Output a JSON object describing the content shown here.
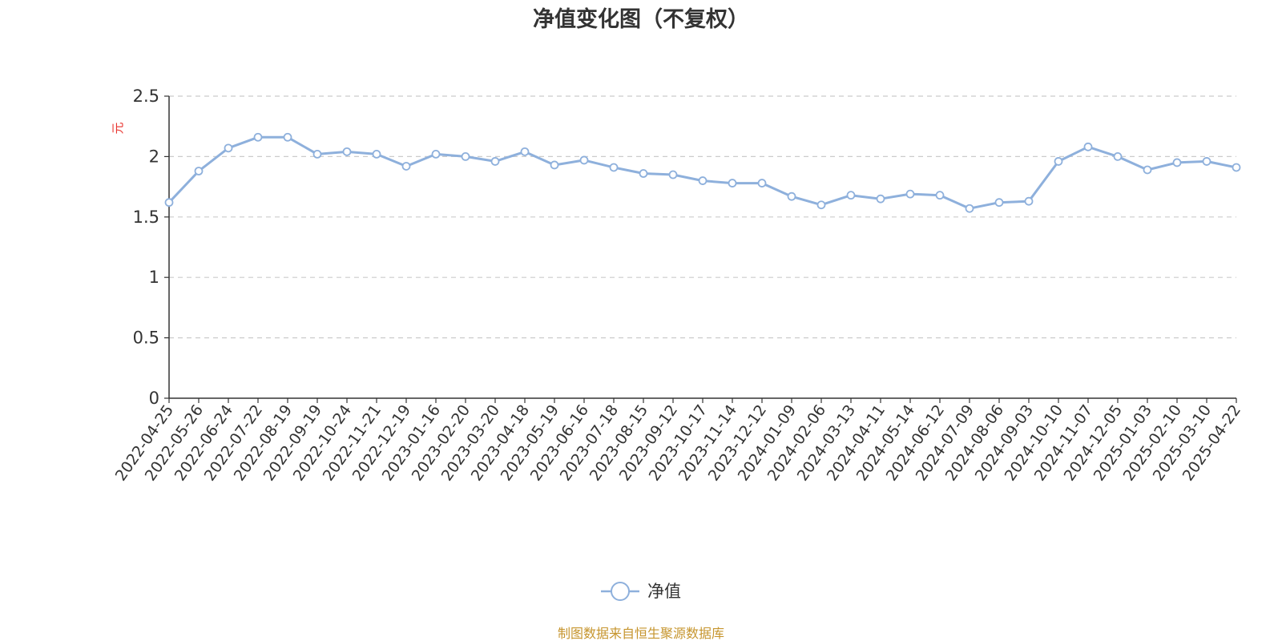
{
  "chart_data": {
    "type": "line",
    "title": "净值变化图（不复权）",
    "ylabel": "元",
    "xlabel": "",
    "ylim": [
      0,
      2.5
    ],
    "y_ticks": [
      "0",
      "0.5",
      "1",
      "1.5",
      "2",
      "2.5"
    ],
    "grid": true,
    "legend_position": "bottom-center",
    "x_ticks": [
      "2022-04-25",
      "2022-05-26",
      "2022-06-24",
      "2022-07-22",
      "2022-08-19",
      "2022-09-19",
      "2022-10-24",
      "2022-11-21",
      "2022-12-19",
      "2023-01-16",
      "2023-02-20",
      "2023-03-20",
      "2023-04-18",
      "2023-05-19",
      "2023-06-16",
      "2023-07-18",
      "2023-08-15",
      "2023-09-12",
      "2023-10-17",
      "2023-11-14",
      "2023-12-12",
      "2024-01-09",
      "2024-02-06",
      "2024-03-13",
      "2024-04-11",
      "2024-05-14",
      "2024-06-12",
      "2024-07-09",
      "2024-08-06",
      "2024-09-03",
      "2024-10-10",
      "2024-11-07",
      "2024-12-05",
      "2025-01-03",
      "2025-02-10",
      "2025-03-10",
      "2025-04-22"
    ],
    "series": [
      {
        "name": "净值",
        "color": "#8eb0dc",
        "values": [
          1.62,
          1.88,
          2.07,
          2.16,
          2.16,
          2.02,
          2.04,
          2.02,
          1.92,
          2.02,
          2.0,
          1.96,
          2.04,
          1.93,
          1.97,
          1.91,
          1.86,
          1.85,
          1.8,
          1.78,
          1.78,
          1.67,
          1.6,
          1.68,
          1.65,
          1.69,
          1.68,
          1.57,
          1.62,
          1.63,
          1.96,
          2.08,
          2.0,
          1.89,
          1.95,
          1.96,
          1.91
        ]
      }
    ]
  },
  "legend": {
    "label": "净值"
  },
  "source": "制图数据来自恒生聚源数据库"
}
